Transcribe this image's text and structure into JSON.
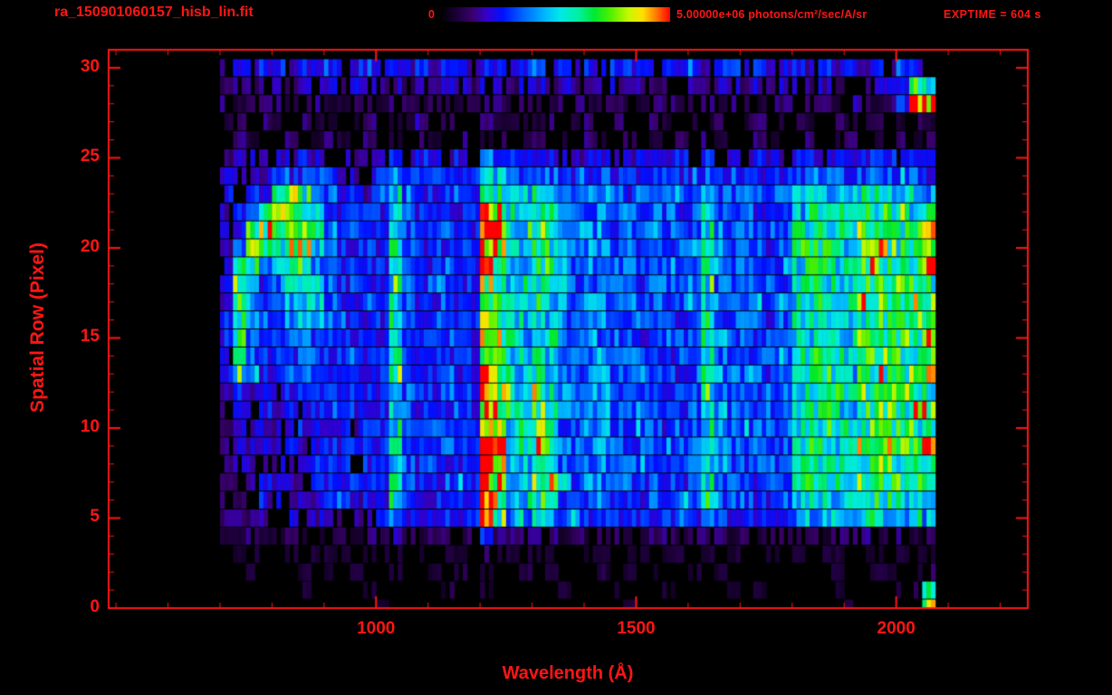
{
  "colors": {
    "text": "#ff1515",
    "frame": "#ff1515",
    "background": "#000000"
  },
  "header": {
    "title": "ra_150901060157_hisb_lin.fit",
    "exptime": "EXPTIME = 604 s",
    "colorbar": {
      "min_label": "0",
      "max_label": "5.00000e+06 photons/cm²/sec/A/sr"
    }
  },
  "chart_data": {
    "type": "heatmap",
    "title": "ra_150901060157_hisb_lin.fit",
    "xlabel": "Wavelength (Å)",
    "ylabel": "Spatial Row (Pixel)",
    "x_ticks": [
      1000,
      1500,
      2000
    ],
    "y_ticks": [
      0,
      5,
      10,
      15,
      20,
      25,
      30
    ],
    "x_minor_step": 100,
    "y_minor_step": 1,
    "xlim": [
      486,
      2253
    ],
    "ylim": [
      0,
      31
    ],
    "grid_on": false,
    "legend": "top colorbar",
    "value_scale": {
      "min": 0,
      "max": 5000000,
      "units": "photons/cm²/sec/A/sr"
    },
    "exposure_time_s": 604,
    "top_row": 30,
    "wavelength_start": 700,
    "wavelength_bin": 25,
    "grid_note": "Rows ordered spatial row 30 (top) to 0 (bottom). Each row: 55 hex digits (spaces ignored), one per 25 Å bin starting at 700 Å; digit 0-f maps linearly to 0 - 5e6 photons/cm²/sec/A/sr.",
    "grid": [
      "3434 43434 3443 4 343443 44 34 434 34344 43434 344 3434 43434 34344 3",
      "2323 32323 2332 3 232332 33 23 323 23233 32323 233 2323 32323 23349 9",
      "2122 21221 1221 2 212212 22 12 212 21221 12212 212 2122 12212 2124e f",
      "1202 10211 0120 1 120210 21 11 120 12021 02101 120 1201 21021 12012 1",
      "0210 02012 1020 1 021020 12 01 201 02102 01020 210 0210 02012 01021 2",
      "2333 33433 3333 4 343343 65 44 443 34433 43343 434 3433 44344 44434 4",
      "3333 44444 3334 6 444444 87 55 554 44444 44444 544 4444 55555 55555 4",
      "3344 9b975 4434 8 544454 c9 77 875 55654 55555 755 5555 77777 88888 6",
      "3459 bb875 4444 8 545444 ec 87 985 55655 45545 855 5455 78877 99998 8",
      "34ab 9ab96 4544 8 544544 fd 88 a95 56655 55455 865 5555 88987 a9a99 c",
      "35b9 8bb75 4454 8 545454 ec 87 a96 56655 55555 875 5545 89987 aaa99 9",
      "3b95 79a65 4444 8 544544 c9 87 996 56555 55545 865 5555 89988 aaaa9 e",
      "4b74 68985 4544 8 545444 b9 78 886 55655 45555 855 5455 89888 9aaa9 9",
      "3a64 57875 4444 8 544544 cb 87 976 56655 55455 865 5555 88998 aaa9a b",
      "4964 46765 4544 8 545454 b9 77 875 55655 55545 855 5545 89888 9a9aa 9",
      "4a54 45655 4444 8 544544 cb 87 986 56555 45555 865 5455 88988 aaaa9 d",
      "3954 44554 4544 8 545444 b9 78 876 55655 55455 855 5555 89888 9aa99 9",
      "4874 45544 4444 8 544544 ca 87 975 56655 55545 865 5545 88987 aa99a b",
      "2434 34444 4444 8 544544 db 87 986 56655 55455 865 5555 89988 a9aa9 9",
      "2334 34344 4444 8 544454 ec 88 a96 56655 55545 875 5545 89987 aaa9a c",
      "2333 33444 4344 8 545444 fd 88 a95 56655 55455 865 5555 88998 9aaa9 9",
      "2334 34344 4444 8 544544 fe 88 a96 56655 55545 875 5545 89988 aa9a9 e",
      "2333 33444 4344 8 545444 ec 87 995 55655 55455 865 5555 88987 9aa99 9",
      "2234 33344 4444 8 544454 fd 87 a96 56655 45545 855 5455 89887 a99a9 b",
      "2233 33334 4344 7 544444 db 77 985 55645 45455 755 5445 78877 99989 8",
      "2223 23333 3334 6 444444 ca 66 765 54544 44454 654 4444 67766 88878 6",
      "1121 12112 2122 3 212212 42 22 221 21221 12212 221 2122 22122 21221 2",
      "0110 01011 1011 1 010110 21 11 110 01101 10110 101 0110 10110 11011 1",
      "0010 00101 0100 1 001010 10 01 010 00101 01001 010 0010 01010 01101 3",
      "0000 00100 0010 0 000100 10 00 001 00010 00100 001 0100 00010 00011 9",
      "0000 00000 0001 0 000000 00 00 000 00001 00000 000 0000 00001 00000 b"
    ],
    "colormap": [
      [
        0.0,
        "#000000"
      ],
      [
        0.07,
        "#1c0038"
      ],
      [
        0.14,
        "#3a006e"
      ],
      [
        0.2,
        "#3300cc"
      ],
      [
        0.27,
        "#0010ff"
      ],
      [
        0.36,
        "#0066ff"
      ],
      [
        0.45,
        "#00b4ff"
      ],
      [
        0.52,
        "#00e8e8"
      ],
      [
        0.6,
        "#00f0a0"
      ],
      [
        0.67,
        "#00e830"
      ],
      [
        0.74,
        "#50f000"
      ],
      [
        0.82,
        "#c8f800"
      ],
      [
        0.88,
        "#ffe000"
      ],
      [
        0.94,
        "#ff7800"
      ],
      [
        1.0,
        "#ff0000"
      ]
    ]
  }
}
